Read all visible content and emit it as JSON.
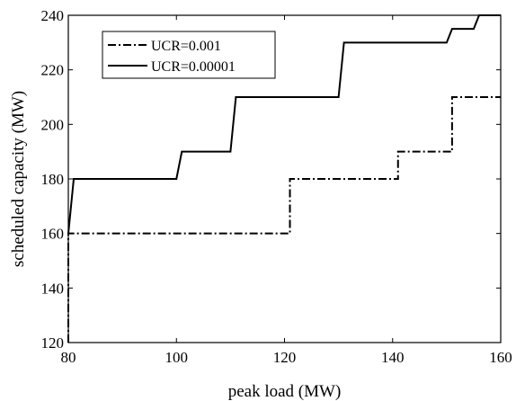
{
  "chart_data": {
    "type": "line",
    "xlabel": "peak load (MW)",
    "ylabel": "scheduled capacity (MW)",
    "xlim": [
      80,
      160
    ],
    "ylim": [
      120,
      240
    ],
    "xticks": [
      "80",
      "100",
      "120",
      "140",
      "160"
    ],
    "yticks": [
      "120",
      "140",
      "160",
      "180",
      "200",
      "220",
      "240"
    ],
    "grid": false,
    "legend_position": "top-left",
    "series": [
      {
        "name": "UCR=0.001",
        "style": "dash-dot",
        "color": "#000000",
        "points": [
          [
            80,
            120
          ],
          [
            80,
            160
          ],
          [
            81,
            160
          ],
          [
            120,
            160
          ],
          [
            121,
            160
          ],
          [
            121,
            180
          ],
          [
            140,
            180
          ],
          [
            141,
            180
          ],
          [
            141,
            190
          ],
          [
            150,
            190
          ],
          [
            151,
            190
          ],
          [
            151,
            210
          ],
          [
            160,
            210
          ]
        ]
      },
      {
        "name": "UCR=0.00001",
        "style": "solid",
        "color": "#000000",
        "points": [
          [
            80,
            160
          ],
          [
            81,
            180
          ],
          [
            100,
            180
          ],
          [
            101,
            190
          ],
          [
            110,
            190
          ],
          [
            111,
            210
          ],
          [
            130,
            210
          ],
          [
            131,
            230
          ],
          [
            150,
            230
          ],
          [
            151,
            235
          ],
          [
            155,
            235
          ],
          [
            156,
            240
          ],
          [
            160,
            240
          ]
        ]
      }
    ]
  }
}
